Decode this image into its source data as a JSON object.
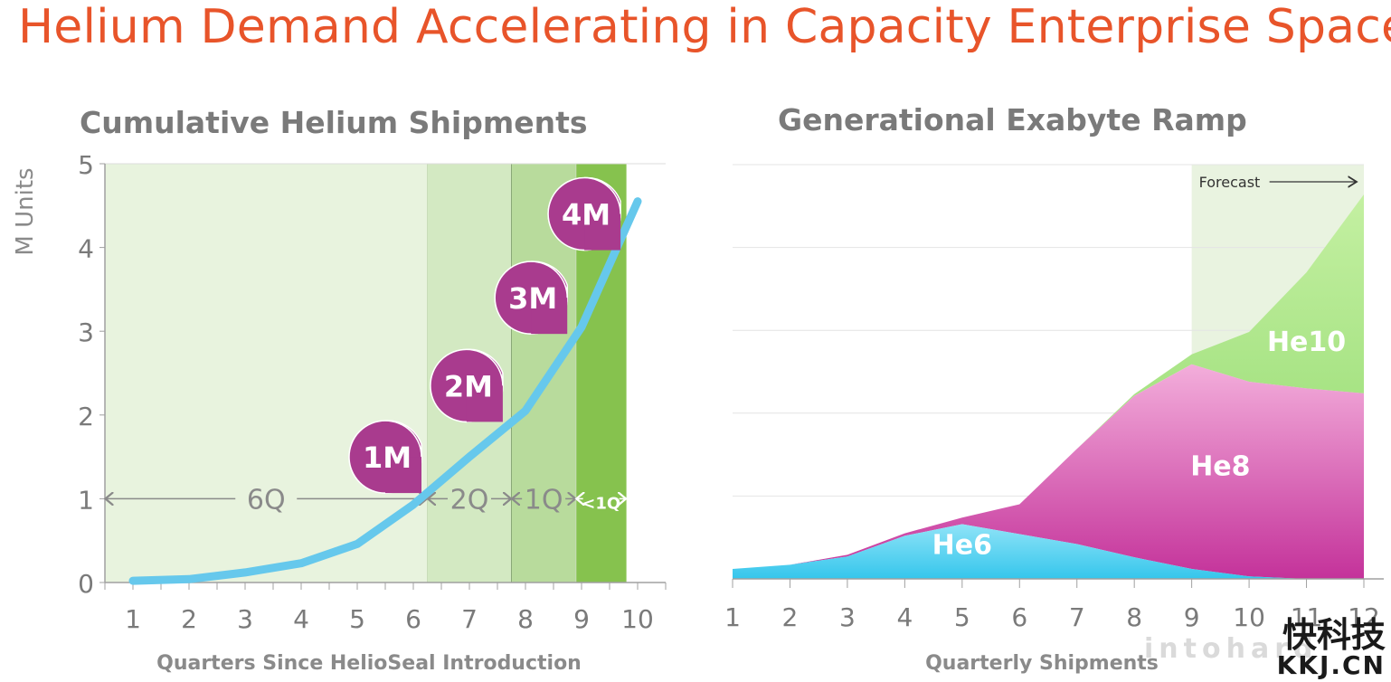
{
  "slide_title": "Helium Demand Accelerating in Capacity Enterprise Space",
  "colors": {
    "accent": "#e8542a",
    "curve": "#66c8ec",
    "milestone": "#a93b8e",
    "he6": "#35c6ec",
    "he8": "#c4329a",
    "he10": "#8ed86a"
  },
  "chart_data": [
    {
      "type": "line",
      "title": "Cumulative Helium Shipments",
      "xlabel": "Quarters Since HelioSeal Introduction",
      "ylabel": "M Units",
      "x": [
        1,
        2,
        3,
        4,
        5,
        6,
        7,
        8,
        9,
        10
      ],
      "xlim": [
        0.5,
        10.5
      ],
      "ylim": [
        0,
        5
      ],
      "xticks": [
        "1",
        "2",
        "3",
        "4",
        "5",
        "6",
        "7",
        "8",
        "9",
        "10"
      ],
      "yticks": [
        "0",
        "1",
        "2",
        "3",
        "4",
        "5"
      ],
      "series": [
        {
          "x": [
            1,
            2,
            3,
            4,
            5,
            6,
            7,
            8,
            9,
            10
          ],
          "values": [
            0.02,
            0.04,
            0.12,
            0.23,
            0.46,
            0.93,
            1.5,
            2.05,
            3.05,
            4.55
          ]
        }
      ],
      "phases": [
        {
          "label": "6Q",
          "x_start": 0.5,
          "x_end": 6.25
        },
        {
          "label": "2Q",
          "x_start": 6.25,
          "x_end": 7.75
        },
        {
          "label": "1Q",
          "x_start": 7.75,
          "x_end": 8.9
        },
        {
          "label": "<1Q",
          "x_start": 8.9,
          "x_end": 9.8
        }
      ],
      "milestones": [
        {
          "label": "1M",
          "x": 5.5,
          "y": 1.5
        },
        {
          "label": "2M",
          "x": 6.95,
          "y": 2.35
        },
        {
          "label": "3M",
          "x": 8.1,
          "y": 3.4
        },
        {
          "label": "4M",
          "x": 9.05,
          "y": 4.4
        }
      ]
    },
    {
      "type": "area",
      "stacked": true,
      "title": "Generational Exabyte Ramp",
      "xlabel": "Quarterly Shipments",
      "x": [
        1,
        2,
        3,
        4,
        5,
        6,
        7,
        8,
        9,
        10,
        11,
        12
      ],
      "xticks": [
        "1",
        "2",
        "3",
        "4",
        "5",
        "6",
        "7",
        "8",
        "9",
        "10",
        "11",
        "12"
      ],
      "xlim": [
        1,
        12
      ],
      "ylim": [
        0,
        5
      ],
      "annotation": "Forecast",
      "forecast_start_x": 9,
      "series": [
        {
          "name": "He6",
          "values": [
            0.12,
            0.17,
            0.27,
            0.52,
            0.66,
            0.54,
            0.42,
            0.26,
            0.12,
            0.03,
            0.0,
            0.0
          ]
        },
        {
          "name": "He8",
          "values": [
            0.0,
            0.0,
            0.02,
            0.03,
            0.08,
            0.36,
            1.15,
            1.95,
            2.47,
            2.35,
            2.3,
            2.24
          ]
        },
        {
          "name": "He10",
          "values": [
            0.0,
            0.0,
            0.0,
            0.0,
            0.0,
            0.0,
            0.0,
            0.02,
            0.12,
            0.6,
            1.4,
            2.4
          ]
        }
      ]
    }
  ],
  "watermark": {
    "cn": "快科技",
    "en": "KKJ.CN",
    "site": "intohard"
  }
}
